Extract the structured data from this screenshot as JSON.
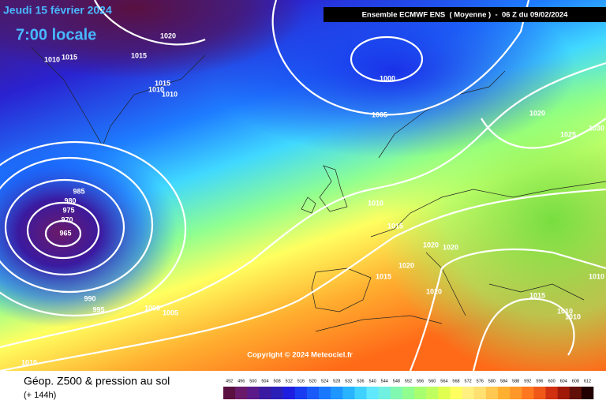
{
  "title": "Jeudi 15 février 2024",
  "time": "7:00 locale",
  "header": "Ensemble ECMWF ENS  ( Moyenne )  -  06 Z du 09/02/2024",
  "copyright": "Copyright © 2024 Meteociel.fr",
  "footer": {
    "label": "Géop. Z500 & pression au sol",
    "lead": "(+ 144h)"
  },
  "isobars": [
    "1020",
    "1010",
    "1015",
    "1015",
    "1015",
    "1010",
    "1010",
    "1000",
    "1005",
    "1020",
    "1025",
    "1030",
    "985",
    "980",
    "975",
    "970",
    "965",
    "1010",
    "1015",
    "1020",
    "1020",
    "1020",
    "1015",
    "1020",
    "1015",
    "1010",
    "1010",
    "1010",
    "990",
    "995",
    "1000",
    "1005",
    "1010"
  ],
  "scale": {
    "values": [
      492,
      496,
      500,
      504,
      508,
      512,
      516,
      520,
      524,
      528,
      532,
      536,
      540,
      544,
      548,
      552,
      556,
      560,
      564,
      568,
      572,
      576,
      580,
      584,
      588,
      592,
      596,
      600,
      604,
      608,
      612
    ],
    "colors": [
      "#5a1040",
      "#6a1a6a",
      "#5a1a8a",
      "#3a1aa0",
      "#2a20b8",
      "#1e1ee0",
      "#1a3cf0",
      "#1a5af8",
      "#1a78ff",
      "#1e96ff",
      "#28b4ff",
      "#40d2ff",
      "#60e8ff",
      "#70f0e0",
      "#80f8b0",
      "#90ff90",
      "#a8ff70",
      "#c0ff60",
      "#e0ff50",
      "#ffff60",
      "#fff080",
      "#ffe070",
      "#ffc850",
      "#ffb030",
      "#ff9828",
      "#ff7820",
      "#f05818",
      "#d03010",
      "#a01808",
      "#601008",
      "#200000"
    ]
  }
}
